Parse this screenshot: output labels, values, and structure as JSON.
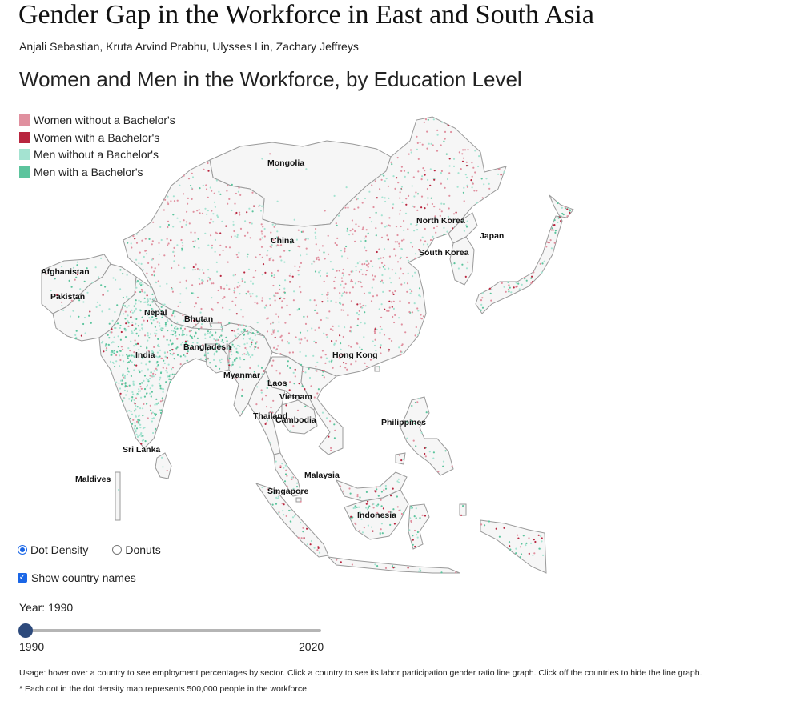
{
  "header": {
    "title": "Gender Gap in the Workforce in East and South Asia",
    "authors": "Anjali Sebastian, Kruta Arvind Prabhu, Ulysses Lin, Zachary Jeffreys",
    "subtitle": "Women and Men in the Workforce, by Education Level"
  },
  "legend": [
    {
      "label": "Women without a Bachelor's",
      "color": "#e0909f"
    },
    {
      "label": "Women with a Bachelor's",
      "color": "#b8263f"
    },
    {
      "label": "Men without a Bachelor's",
      "color": "#a4e3d1"
    },
    {
      "label": "Men with a Bachelor's",
      "color": "#5cc49d"
    }
  ],
  "map": {
    "country_labels": [
      "Mongolia",
      "China",
      "North Korea",
      "Japan",
      "South Korea",
      "Afghanistan",
      "Pakistan",
      "Nepal",
      "Bhutan",
      "India",
      "Bangladesh",
      "Myanmar",
      "Hong Kong",
      "Laos",
      "Vietnam",
      "Thailand",
      "Cambodia",
      "Philippines",
      "Sri Lanka",
      "Maldives",
      "Malaysia",
      "Singapore",
      "Indonesia"
    ],
    "people_per_dot": 500000
  },
  "controls": {
    "view_options": [
      {
        "label": "Dot Density",
        "selected": true
      },
      {
        "label": "Donuts",
        "selected": false
      }
    ],
    "show_names_label": "Show country names",
    "show_names_checked": true,
    "year_label": "Year: 1990",
    "year_value": 1990,
    "year_min": 1990,
    "year_max": 2020,
    "year_min_label": "1990",
    "year_max_label": "2020"
  },
  "footer": {
    "usage": "Usage: hover over a country to see employment percentages by sector. Click a country to see its labor participation gender ratio line graph. Click off the countries to hide the line graph.",
    "note": "* Each dot in the dot density map represents 500,000 people in the workforce"
  }
}
